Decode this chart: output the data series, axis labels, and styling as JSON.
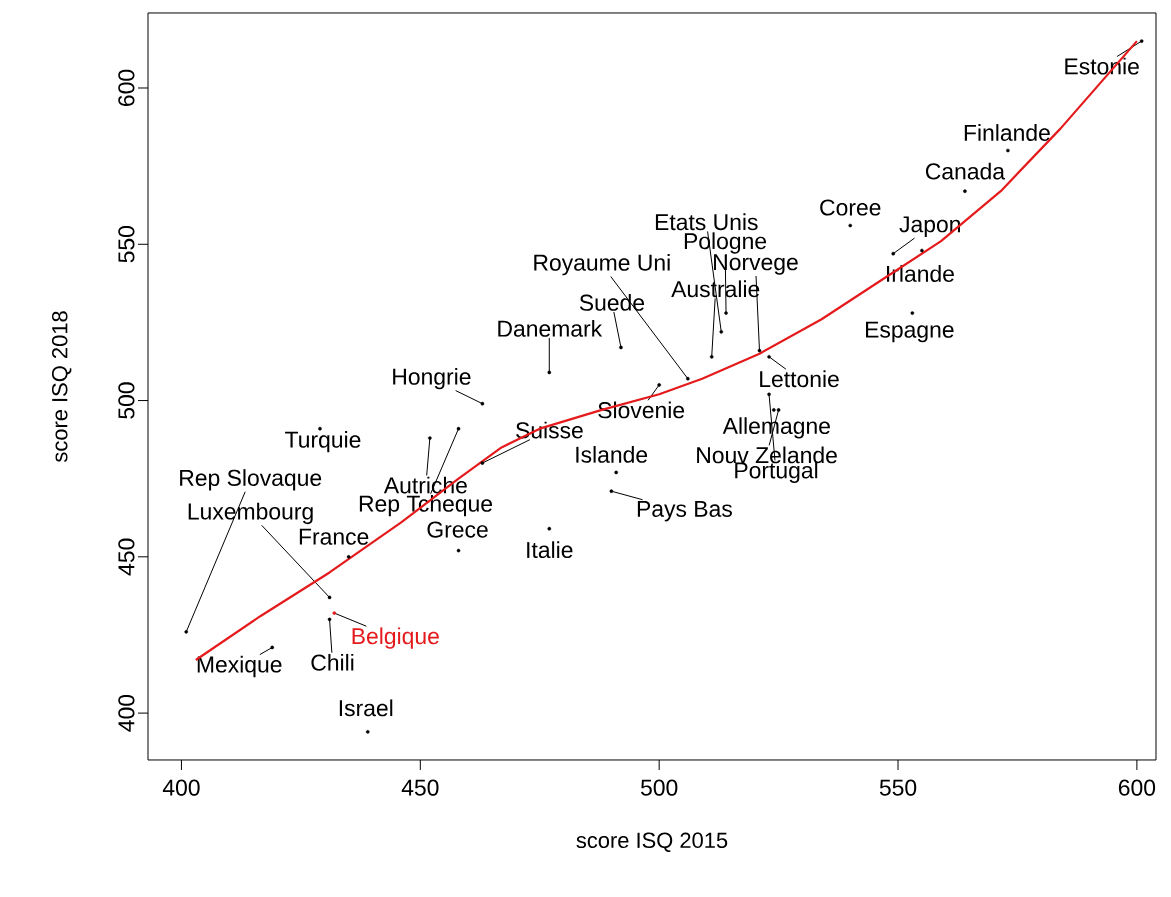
{
  "chart_data": {
    "type": "scatter",
    "xlabel": "score ISQ 2015",
    "ylabel": "score ISQ 2018",
    "xlim": [
      393,
      604
    ],
    "ylim": [
      385,
      624
    ],
    "xticks": [
      400,
      450,
      500,
      550,
      600
    ],
    "yticks": [
      400,
      450,
      500,
      550,
      600
    ],
    "grid": false,
    "series": [
      {
        "marker": "circle",
        "x": [
          601,
          573,
          564,
          540,
          549,
          555,
          553,
          513,
          514,
          506,
          521,
          511,
          492,
          477,
          463,
          500,
          463,
          429,
          491,
          490,
          477,
          458,
          458,
          452,
          401,
          431,
          435,
          432,
          431,
          419,
          439,
          523,
          524,
          525,
          523
        ],
        "values": [
          615,
          580,
          567,
          556,
          547,
          548,
          528,
          522,
          528,
          507,
          516,
          514,
          517,
          509,
          499,
          505,
          480,
          491,
          477,
          471,
          459,
          452,
          491,
          488,
          426,
          437,
          450,
          432,
          430,
          421,
          394,
          514,
          497,
          497,
          502
        ],
        "value_labels": [
          "Estonie",
          "Finlande",
          "Canada",
          "Coree",
          "Japon",
          "Irlande",
          "Espagne",
          "Etats Unis",
          "Pologne",
          "Royaume Uni",
          "Norvege",
          "Australie",
          "Suede",
          "Danemark",
          "Hongrie",
          "Slovenie",
          "Suisse",
          "Turquie",
          "Islande",
          "Pays Bas",
          "Italie",
          "Grece",
          "Rep Tcheque",
          "Autriche",
          "Rep Slovaque",
          "Luxembourg",
          "France",
          "Belgique",
          "Chili",
          "Mexique",
          "Israel",
          "Lettonie",
          "Allemagne",
          "Nouv Zelande",
          "Portugal"
        ],
        "colors": [
          "#000000",
          "#000000",
          "#000000",
          "#000000",
          "#000000",
          "#000000",
          "#000000",
          "#000000",
          "#000000",
          "#000000",
          "#000000",
          "#000000",
          "#000000",
          "#000000",
          "#000000",
          "#000000",
          "#000000",
          "#000000",
          "#000000",
          "#000000",
          "#000000",
          "#000000",
          "#000000",
          "#000000",
          "#000000",
          "#000000",
          "#000000",
          "#e41a1c",
          "#000000",
          "#000000",
          "#000000",
          "#000000",
          "#000000",
          "#000000",
          "#000000"
        ]
      },
      {
        "type": "line",
        "color": "#e41a1c",
        "line_style": "solid",
        "x": [
          403,
          416.5,
          431,
          446,
          458,
          467,
          475,
          488,
          500,
          509,
          521,
          534,
          546,
          559,
          571.5,
          584,
          600
        ],
        "values": [
          417,
          431,
          445,
          461,
          475,
          485,
          491,
          497,
          502,
          507,
          515,
          526,
          538,
          551,
          567,
          587,
          615
        ]
      }
    ]
  }
}
